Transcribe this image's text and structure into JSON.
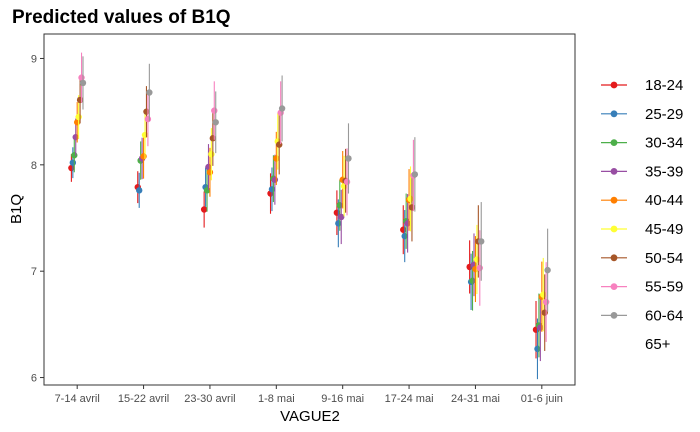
{
  "chart_data": {
    "type": "scatter",
    "title": "Predicted values of B1Q",
    "xlabel": "VAGUE2",
    "ylabel": "B1Q",
    "ylim": [
      5.93,
      9.23
    ],
    "yticks": [
      6,
      7,
      8,
      9
    ],
    "categories": [
      "7-14 avril",
      "15-22 avril",
      "23-30 avril",
      "1-8 mai",
      "9-16 mai",
      "17-24 mai",
      "24-31 mai",
      "01-6 juin"
    ],
    "grid": false,
    "legend_position": "right",
    "series": [
      {
        "name": "18-24",
        "color": "#E41A1C",
        "values": [
          7.97,
          7.79,
          7.58,
          7.73,
          7.55,
          7.39,
          7.04,
          6.45
        ]
      },
      {
        "name": "25-29",
        "color": "#377EB8",
        "values": [
          8.02,
          7.76,
          7.79,
          7.77,
          7.45,
          7.33,
          6.9,
          6.27
        ]
      },
      {
        "name": "30-34",
        "color": "#4DAF4A",
        "values": [
          8.09,
          8.04,
          7.76,
          7.87,
          7.62,
          7.47,
          6.91,
          6.49
        ]
      },
      {
        "name": "35-39",
        "color": "#984EA3",
        "values": [
          8.26,
          8.06,
          7.98,
          7.86,
          7.51,
          7.45,
          7.06,
          6.47
        ]
      },
      {
        "name": "40-44",
        "color": "#FF7F00",
        "values": [
          8.4,
          8.08,
          7.93,
          8.06,
          7.86,
          7.67,
          7.02,
          6.76
        ]
      },
      {
        "name": "45-49",
        "color": "#FFFF33",
        "values": [
          8.45,
          8.28,
          8.1,
          8.22,
          7.8,
          7.68,
          7.11,
          6.78
        ]
      },
      {
        "name": "50-54",
        "color": "#A65628",
        "values": [
          8.61,
          8.5,
          8.25,
          8.19,
          7.85,
          7.6,
          7.28,
          6.61
        ]
      },
      {
        "name": "55-59",
        "color": "#F781BF",
        "values": [
          8.82,
          8.43,
          8.51,
          8.49,
          7.84,
          7.9,
          7.03,
          6.71
        ]
      },
      {
        "name": "60-64",
        "color": "#999999",
        "values": [
          8.77,
          8.68,
          8.4,
          8.53,
          8.06,
          7.91,
          7.28,
          7.01
        ]
      },
      {
        "name": "65+",
        "color": "",
        "values": []
      }
    ]
  }
}
